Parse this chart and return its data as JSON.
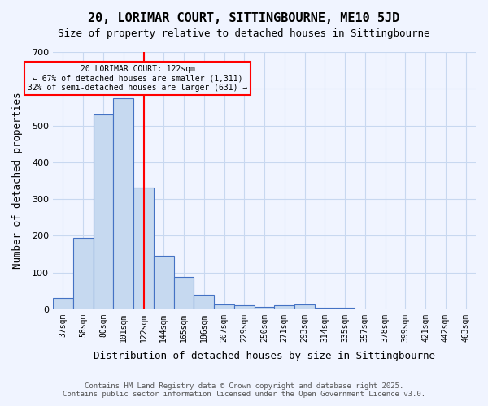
{
  "title": "20, LORIMAR COURT, SITTINGBOURNE, ME10 5JD",
  "subtitle": "Size of property relative to detached houses in Sittingbourne",
  "xlabel": "Distribution of detached houses by size in Sittingbourne",
  "ylabel": "Number of detached properties",
  "categories": [
    "37sqm",
    "58sqm",
    "80sqm",
    "101sqm",
    "122sqm",
    "144sqm",
    "165sqm",
    "186sqm",
    "207sqm",
    "229sqm",
    "250sqm",
    "271sqm",
    "293sqm",
    "314sqm",
    "335sqm",
    "357sqm",
    "378sqm",
    "399sqm",
    "421sqm",
    "442sqm",
    "463sqm"
  ],
  "values": [
    30,
    193,
    530,
    575,
    330,
    145,
    87,
    40,
    13,
    10,
    7,
    10,
    13,
    5,
    5,
    0,
    0,
    0,
    0,
    0,
    0
  ],
  "bar_color": "#c6d9f0",
  "bar_edge_color": "#4472c4",
  "vline_index": 4,
  "vline_color": "red",
  "vline_label": "122sqm",
  "annotation_title": "20 LORIMAR COURT: 122sqm",
  "annotation_line2": "← 67% of detached houses are smaller (1,311)",
  "annotation_line3": "32% of semi-detached houses are larger (631) →",
  "annotation_box_color": "red",
  "ylim": [
    0,
    700
  ],
  "yticks": [
    0,
    100,
    200,
    300,
    400,
    500,
    600,
    700
  ],
  "footer_line1": "Contains HM Land Registry data © Crown copyright and database right 2025.",
  "footer_line2": "Contains public sector information licensed under the Open Government Licence v3.0.",
  "bg_color": "#f0f4ff",
  "grid_color": "#c8d8f0"
}
